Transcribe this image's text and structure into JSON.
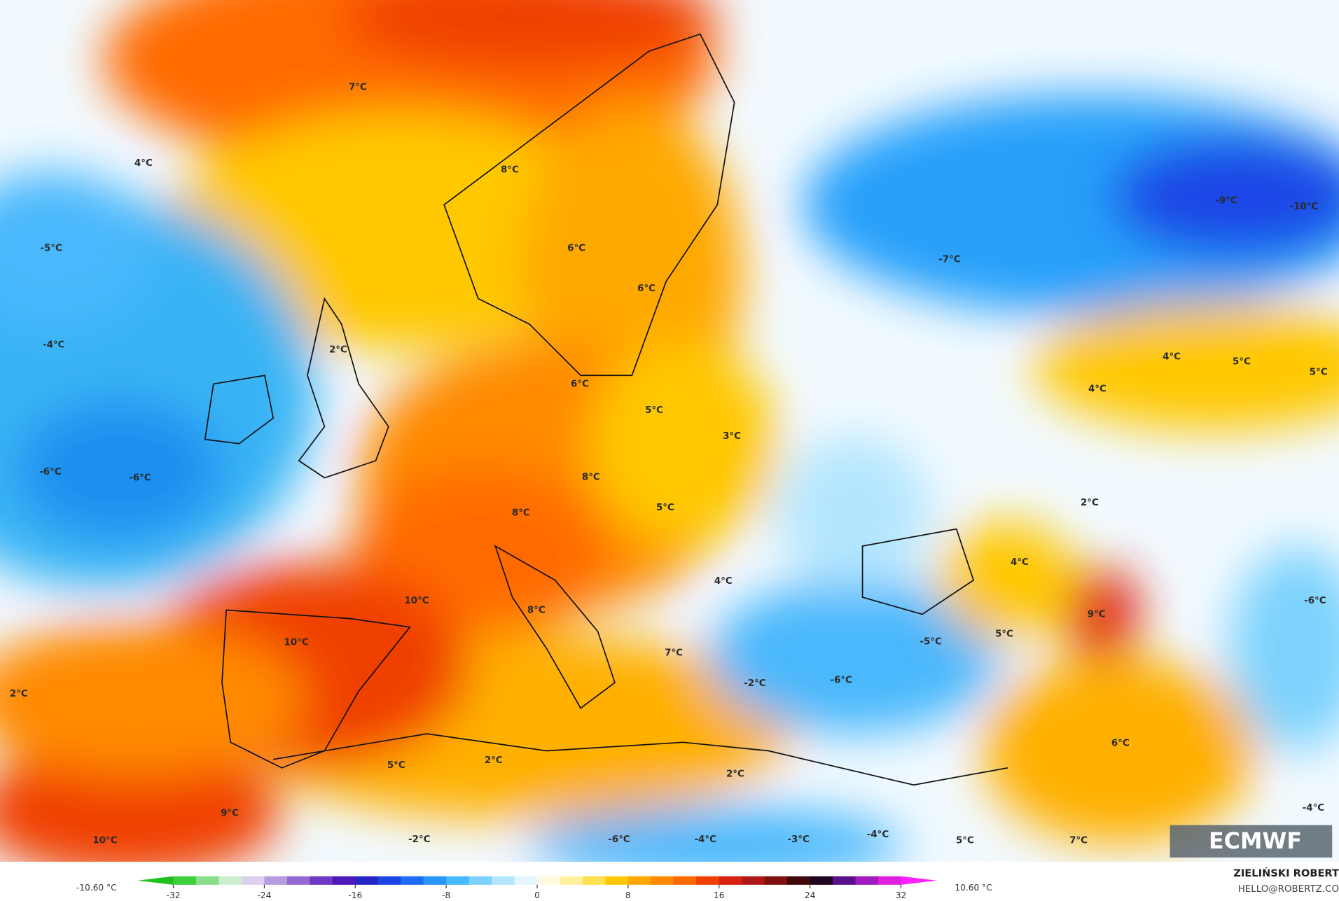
{
  "map_labels": [
    "7°C",
    "4°C",
    "8°C",
    "-5°C",
    "6°C",
    "6°C",
    "-7°C",
    "-9°C",
    "-10°C",
    "-4°C",
    "2°C",
    "6°C",
    "4°C",
    "5°C",
    "5°C",
    "4°C",
    "5°C",
    "3°C",
    "-6°C",
    "-6°C",
    "8°C",
    "2°C",
    "5°C",
    "8°C",
    "4°C",
    "4°C",
    "10°C",
    "8°C",
    "9°C",
    "-6°C",
    "10°C",
    "-5°C",
    "5°C",
    "7°C",
    "-2°C",
    "-6°C",
    "2°C",
    "6°C",
    "5°C",
    "2°C",
    "2°C",
    "9°C",
    "-4°C",
    "10°C",
    "-2°C",
    "-6°C",
    "-4°C",
    "-3°C",
    "-4°C",
    "5°C",
    "7°C"
  ],
  "logo": "ECMWF",
  "credits": {
    "author": "ZIELIŃSKI ROBERT",
    "contact": "HELLO@ROBERTZ.CO"
  },
  "colorbar": {
    "min_label": "-10.60 °C",
    "max_label": "10.60 °C",
    "range": [
      -32,
      32
    ],
    "ticks": [
      -32,
      -24,
      -16,
      -8,
      0,
      8,
      16,
      24,
      32
    ],
    "colors": [
      "#3ecf3e",
      "#8ade8a",
      "#cdeecd",
      "#ddd0ee",
      "#b89ce0",
      "#9468d2",
      "#7038c4",
      "#4c18b8",
      "#2626c8",
      "#1a46e6",
      "#1e6cf4",
      "#2896fa",
      "#48b8fc",
      "#7cd2fd",
      "#b4e6fe",
      "#e4f6ff",
      "#fffbe0",
      "#fff0a0",
      "#ffe050",
      "#ffc800",
      "#ffa800",
      "#ff8a00",
      "#ff6a00",
      "#f04000",
      "#d82010",
      "#b01818",
      "#801010",
      "#400808",
      "#200420",
      "#5a108a",
      "#a01ac0",
      "#e020e0"
    ],
    "under_color": "#20c020",
    "over_color": "#ff20ff"
  }
}
